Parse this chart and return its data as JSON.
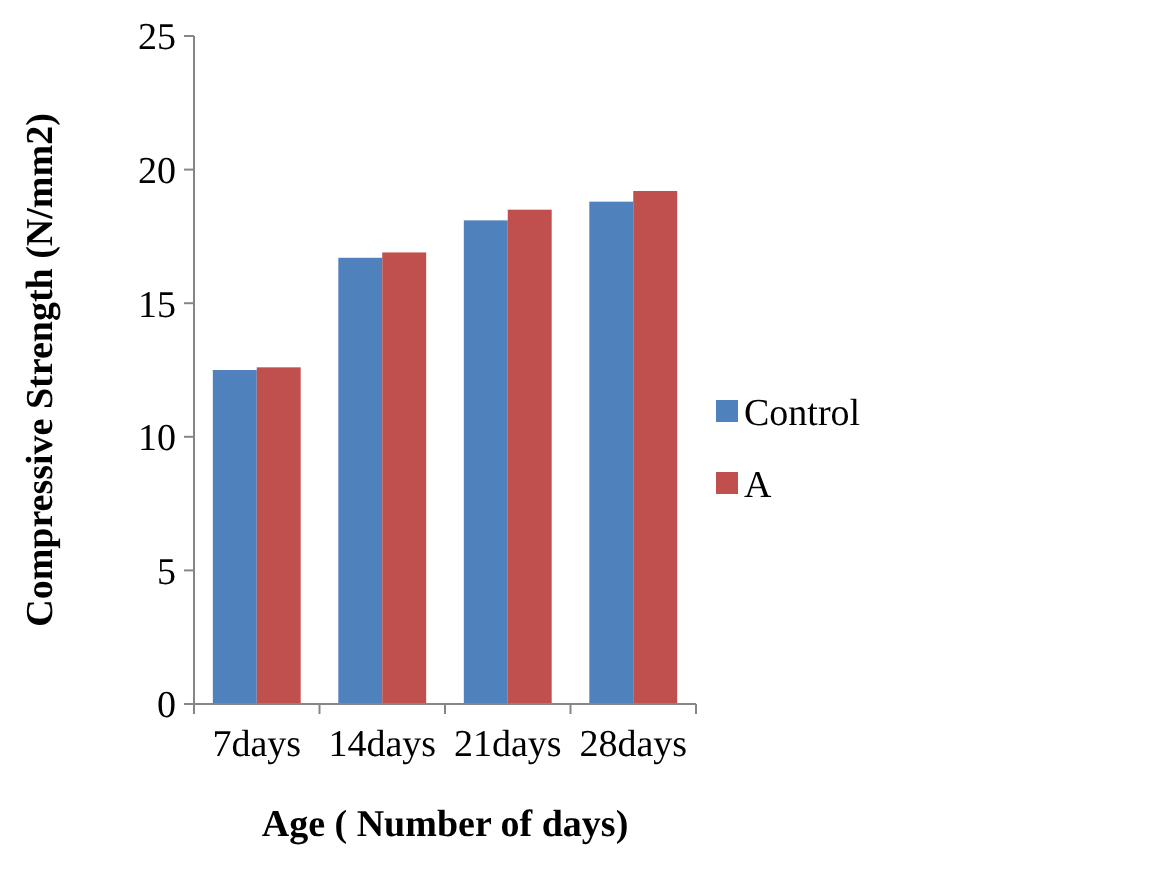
{
  "chart_data": {
    "type": "bar",
    "xlabel": "Age ( Number of days)",
    "ylabel": "Compressive Strength (N/mm2)",
    "categories": [
      "7days",
      "14days",
      "21days",
      "28days"
    ],
    "series": [
      {
        "name": "Control",
        "color": "#4f81bd",
        "values": [
          12.5,
          16.7,
          18.1,
          18.8
        ]
      },
      {
        "name": "A",
        "color": "#c0504d",
        "values": [
          12.6,
          16.9,
          18.5,
          19.2
        ]
      }
    ],
    "ylim": [
      0,
      25
    ],
    "yticks": [
      0,
      5,
      10,
      15,
      20,
      25
    ],
    "grid": false,
    "legend": "right"
  }
}
